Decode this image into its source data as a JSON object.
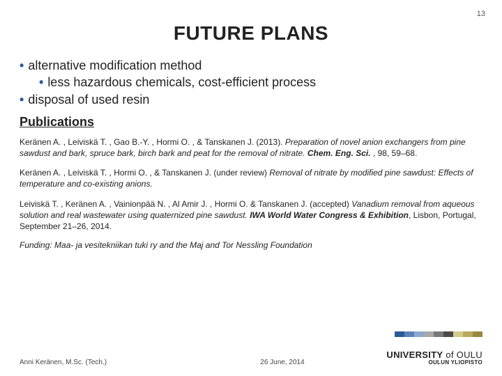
{
  "page_number": "13",
  "title": "FUTURE PLANS",
  "bullets": {
    "b1": "alternative modification method",
    "b1a": "less hazardous chemicals, cost-efficient process",
    "b2": "disposal of used resin"
  },
  "publications_heading": "Publications",
  "pub1": {
    "authors": "Keränen A. , Leiviskä T. , Gao B.-Y. , Hormi O. , & Tanskanen J. (2013). ",
    "title_italic": "Preparation of novel anion exchangers from pine sawdust and bark, spruce bark, birch bark and peat for the removal of nitrate. ",
    "journal_bi": "Chem. Eng. Sci.",
    "tail": " , 98, 59–68."
  },
  "pub2": {
    "authors": "Keränen A. , Leiviskä T. , Hormi O. , & Tanskanen J. (under review) ",
    "title_italic": "Removal of nitrate by modified pine sawdust: Effects of temperature and co-existing anions."
  },
  "pub3": {
    "authors": "Leiviskä T. , Keränen A. , Vainionpää N. , Al Amir J. , Hormi O. & Tanskanen J. (accepted) ",
    "title_italic": "Vanadium removal from aqueous solution and real wastewater using quaternized pine sawdust. ",
    "journal_bi": "IWA World Water Congress & Exhibition",
    "tail": ", Lisbon, Portugal, September 21–26, 2014."
  },
  "funding": "Funding: Maa- ja vesitekniikan tuki ry and the Maj and Tor Nessling Foundation",
  "footer": {
    "author": "Anni Keränen, M.Sc. (Tech.)",
    "date": "26 June, 2014",
    "uni_main_pre": "UNIVERSITY",
    "uni_main_post": "of OULU",
    "uni_sub": "OULUN YLIOPISTO"
  },
  "colorbar": [
    "#2a5a9a",
    "#5a84b8",
    "#8aa9d0",
    "#a8a8a8",
    "#7a7a7a",
    "#4a4a4a",
    "#d4c98a",
    "#b8a862",
    "#9a873e"
  ]
}
